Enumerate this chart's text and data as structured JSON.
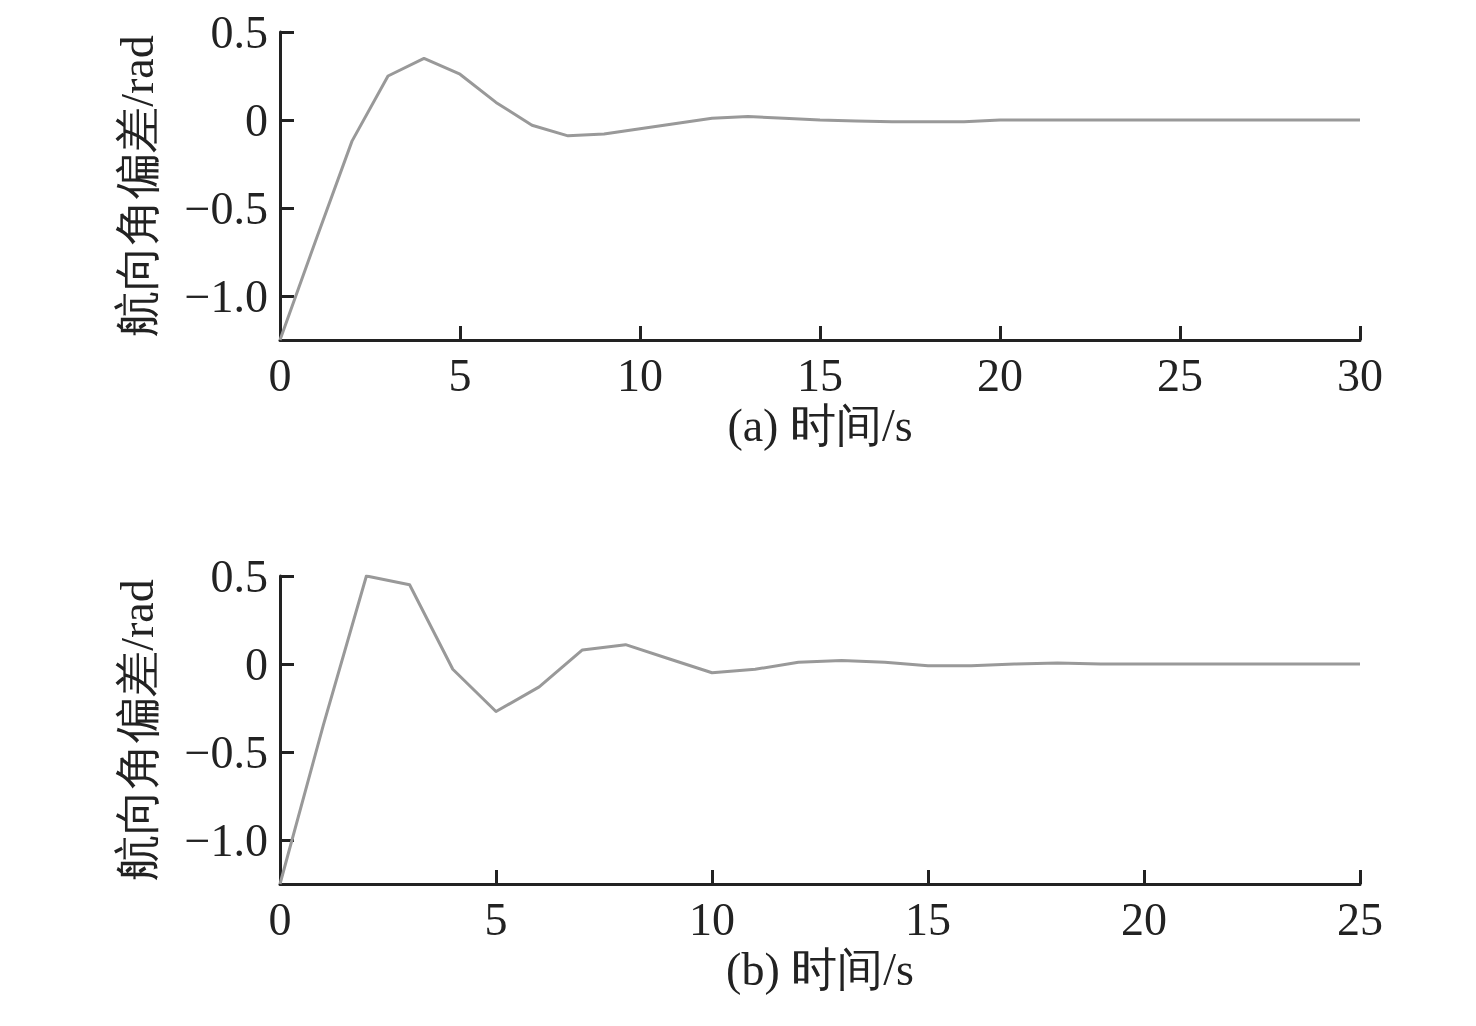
{
  "chart_data": [
    {
      "type": "line",
      "xlabel": "(a) 时间/s",
      "ylabel": "航向角偏差/rad",
      "x": [
        0,
        1,
        2,
        3,
        4,
        5,
        6,
        7,
        8,
        9,
        10,
        11,
        12,
        13,
        14,
        15,
        16,
        17,
        18,
        19,
        20,
        22,
        24,
        26,
        28,
        30
      ],
      "series": [
        {
          "color": "#999999",
          "values": [
            -1.25,
            -0.68,
            -0.12,
            0.25,
            0.35,
            0.26,
            0.1,
            -0.03,
            -0.09,
            -0.08,
            -0.05,
            -0.02,
            0.01,
            0.02,
            0.01,
            0,
            -0.005,
            -0.01,
            -0.01,
            -0.01,
            0,
            0,
            0,
            0,
            0,
            0
          ]
        }
      ],
      "xlim": [
        0,
        30
      ],
      "xticks": [
        0,
        5,
        10,
        15,
        20,
        25,
        30
      ],
      "ylim": [
        -1.25,
        0.5
      ],
      "yticks": [
        {
          "value": 0.5,
          "label": "0.5"
        },
        0,
        {
          "value": -0.5,
          "label": "−0.5"
        },
        {
          "value": -1,
          "label": "−1.0"
        }
      ],
      "grid": false,
      "marker": "none",
      "line_style": "solid"
    },
    {
      "type": "line",
      "xlabel": "(b) 时间/s",
      "ylabel": "航向角偏差/rad",
      "x": [
        0,
        1,
        2,
        3,
        4,
        5,
        6,
        7,
        8,
        9,
        10,
        11,
        12,
        13,
        14,
        15,
        16,
        17,
        18,
        19,
        20,
        21,
        22,
        23,
        24,
        25
      ],
      "series": [
        {
          "color": "#999999",
          "values": [
            -1.25,
            -0.35,
            0.5,
            0.45,
            -0.03,
            -0.27,
            -0.13,
            0.08,
            0.11,
            0.03,
            -0.05,
            -0.03,
            0.01,
            0.02,
            0.01,
            -0.01,
            -0.01,
            0,
            0.005,
            0,
            0,
            0,
            0,
            0,
            0,
            0
          ]
        }
      ],
      "xlim": [
        0,
        25
      ],
      "xticks": [
        0,
        5,
        10,
        15,
        20,
        25
      ],
      "ylim": [
        -1.25,
        0.5
      ],
      "yticks": [
        {
          "value": 0.5,
          "label": "0.5"
        },
        0,
        {
          "value": -0.5,
          "label": "−0.5"
        },
        {
          "value": -1,
          "label": "−1.0"
        }
      ],
      "grid": false,
      "marker": "none",
      "line_style": "solid"
    }
  ]
}
